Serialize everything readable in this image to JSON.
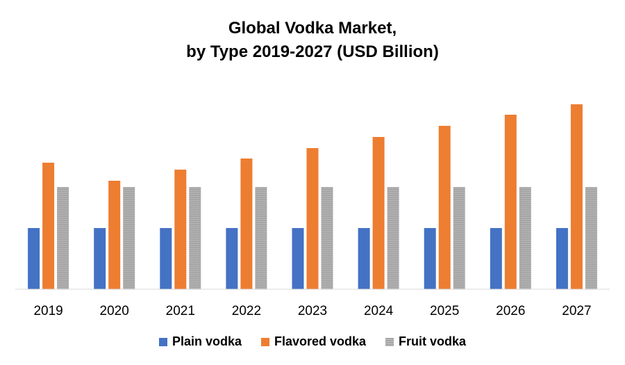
{
  "chart_data": {
    "type": "bar",
    "title_line1": "Global Vodka Market,",
    "title_line2": "by Type 2019-2027 (USD Billion)",
    "categories": [
      "2019",
      "2020",
      "2021",
      "2022",
      "2023",
      "2024",
      "2025",
      "2026",
      "2027"
    ],
    "series": [
      {
        "name": "Plain vodka",
        "color": "#4472C4",
        "values": [
          88,
          88,
          88,
          88,
          88,
          88,
          88,
          88,
          88
        ]
      },
      {
        "name": "Flavored vodka",
        "color": "#ED7D31",
        "values": [
          182,
          156,
          172,
          188,
          203,
          219,
          235,
          251,
          266
        ]
      },
      {
        "name": "Fruit vodka",
        "color": "#A5A5A5",
        "values": [
          147,
          147,
          147,
          147,
          147,
          147,
          147,
          147,
          147
        ]
      }
    ],
    "ylim": [
      0,
      280
    ],
    "grid": false,
    "legend_position": "bottom"
  }
}
